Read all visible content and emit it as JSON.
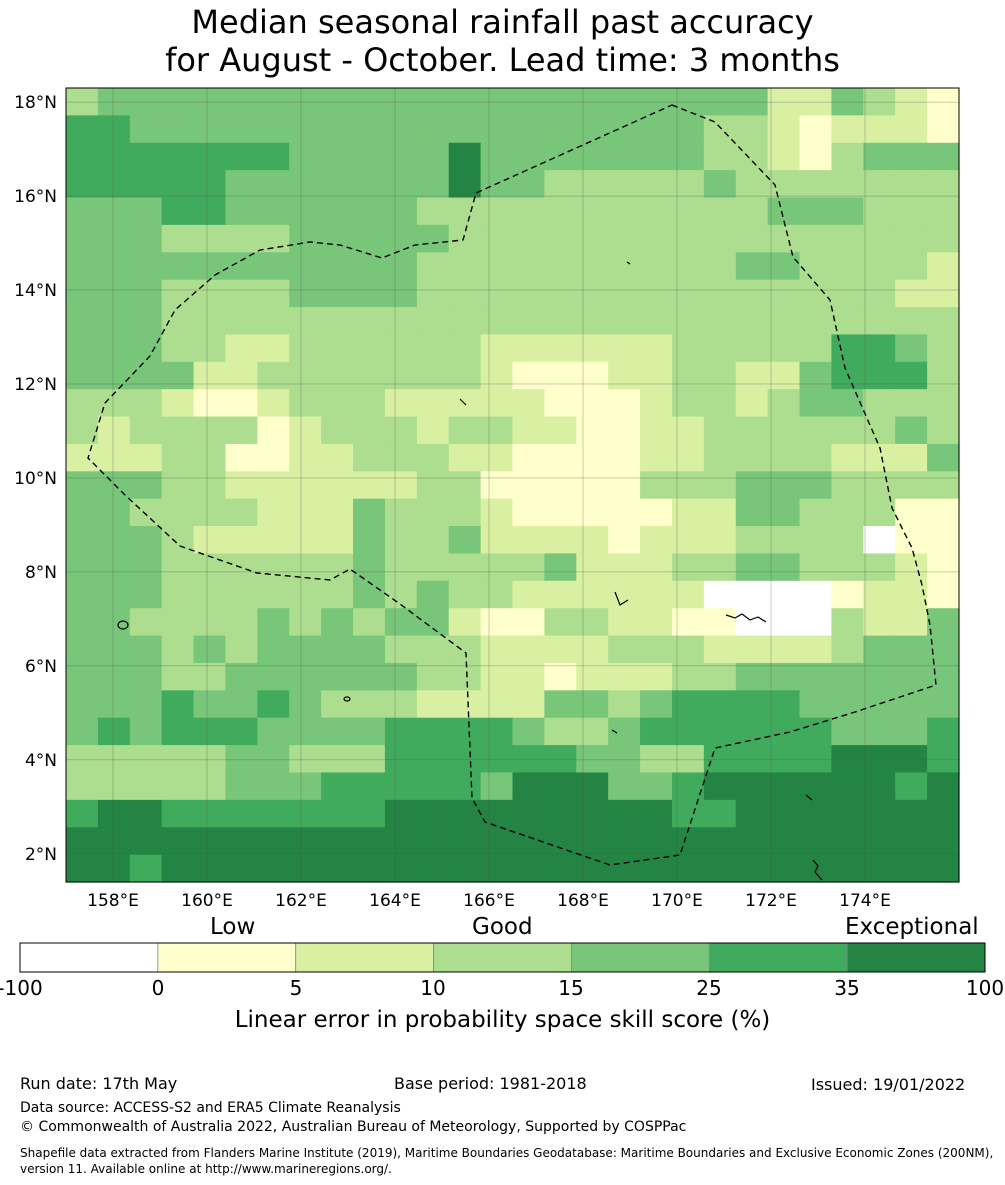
{
  "title": {
    "line1": "Median seasonal rainfall past accuracy",
    "line2": "for August - October. Lead time: 3 months"
  },
  "map": {
    "lon_labels": [
      "158°E",
      "160°E",
      "162°E",
      "164°E",
      "166°E",
      "168°E",
      "170°E",
      "172°E",
      "174°E"
    ],
    "lat_labels": [
      "18°N",
      "16°N",
      "14°N",
      "12°N",
      "10°N",
      "8°N",
      "6°N",
      "4°N",
      "2°N"
    ],
    "lon_values": [
      158,
      160,
      162,
      164,
      166,
      168,
      170,
      172,
      174
    ],
    "lat_values": [
      18,
      16,
      14,
      12,
      10,
      8,
      6,
      4,
      2
    ],
    "lon_range": [
      157,
      176
    ],
    "lat_range": [
      1.4,
      18.3
    ],
    "grid": true,
    "eez_boundary": "dashed",
    "grid_classes_rows_top_to_bottom": [
      "3444444444444444444444224321",
      "5544444444444444444433212221",
      "5555555444446444444433213444",
      "5555544444446443333343333333",
      "4445544444433333333333444333",
      "4443333444443333333333333333",
      "4444444444433333333334433332",
      "4443333444433333333333333322",
      "4443333333333333333333333333",
      "4443322333333222222333335543",
      "4444223333333211122332245553",
      "3332112333222221112332344333",
      "3233331233323322112233333343",
      "2223311223332211112233332224",
      "4443322222233111113334443333",
      "4433332224333211111224433311",
      "4443222224334222212223333011",
      "4443333334333334222334433321",
      "4443333334343322222200001221",
      "4433334343442113322110003224",
      "4443434444333222233322223444",
      "4443344444433221222334444444",
      "4445445433322224434555544444",
      "4545554444555543345555554445",
      "3333344333555555443355556665",
      "3333344455555466644566666656",
      "5665555555666666666556666666",
      "6666666666666666666666666666",
      "6656666666666666666666666666"
    ]
  },
  "colorbar": {
    "categories": [
      "Low",
      "Good",
      "Exceptional"
    ],
    "ticks": [
      "-100",
      "0",
      "5",
      "10",
      "15",
      "25",
      "35",
      "100"
    ],
    "colors": [
      "#ffffff",
      "#ffffcc",
      "#d9f0a3",
      "#addd8e",
      "#78c679",
      "#41ab5d",
      "#238443"
    ],
    "label": "Linear error in probability space skill score (%)"
  },
  "footer": {
    "run_date": "Run date: 17th May",
    "base_period": "Base period: 1981-2018",
    "issued": "Issued: 19/01/2022",
    "data_source": "Data source: ACCESS-S2 and ERA5 Climate Reanalysis",
    "copyright": "© Commonwealth of Australia 2022, Australian Bureau of Meteorology, Supported by COSPPac",
    "shapefile_line1": "Shapefile data extracted from Flanders Marine Institute (2019), Maritime Boundaries Geodatabase: Maritime Boundaries and Exclusive Economic Zones (200NM),",
    "shapefile_line2": "version 11. Available online at http://www.marineregions.org/."
  }
}
